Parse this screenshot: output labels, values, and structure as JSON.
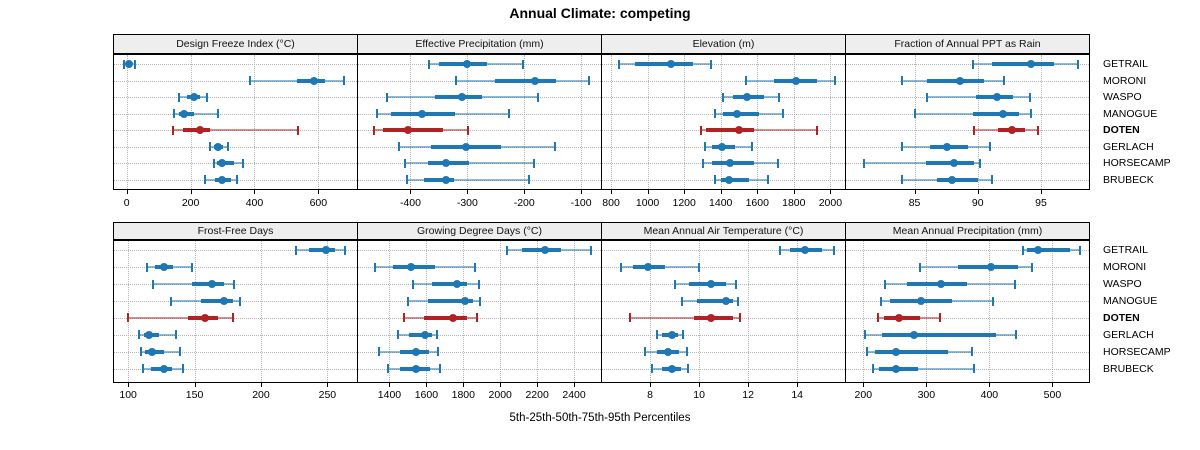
{
  "title": "Annual Climate: competing",
  "xlabel": "5th-25th-50th-75th-95th Percentiles",
  "sites": [
    "GETRAIL",
    "MORONI",
    "WASPO",
    "MANOGUE",
    "DOTEN",
    "GERLACH",
    "HORSECAMP",
    "BRUBECK"
  ],
  "highlight_site": "DOTEN",
  "percentile_labels": [
    "5th",
    "25th",
    "50th",
    "75th",
    "95th"
  ],
  "colors": {
    "series_blue": "#1f77b4",
    "highlight_red": "#b22222",
    "strip_bg": "#eeeeee",
    "grid": "#b5b5b5",
    "border": "#000000"
  },
  "chart_data": [
    {
      "type": "percentile-dotplot",
      "title": "Design Freeze Index (°C)",
      "row": 0,
      "col": 0,
      "xlim": [
        -43,
        721
      ],
      "ticks": [
        0,
        200,
        400,
        600
      ],
      "series": [
        {
          "name": "GETRAIL",
          "values": [
            -8,
            -2,
            6,
            15,
            25
          ]
        },
        {
          "name": "MORONI",
          "values": [
            385,
            533,
            585,
            620,
            680
          ]
        },
        {
          "name": "WASPO",
          "values": [
            165,
            190,
            212,
            230,
            252
          ]
        },
        {
          "name": "MANOGUE",
          "values": [
            147,
            163,
            180,
            210,
            285
          ]
        },
        {
          "name": "DOTEN",
          "values": [
            145,
            175,
            228,
            262,
            535
          ]
        },
        {
          "name": "GERLACH",
          "values": [
            260,
            272,
            285,
            302,
            317
          ]
        },
        {
          "name": "HORSECAMP",
          "values": [
            272,
            282,
            297,
            335,
            365
          ]
        },
        {
          "name": "BRUBECK",
          "values": [
            246,
            276,
            297,
            325,
            345
          ]
        }
      ]
    },
    {
      "type": "percentile-dotplot",
      "title": "Effective Precipitation (mm)",
      "row": 0,
      "col": 1,
      "xlim": [
        -494,
        -65
      ],
      "ticks": [
        -400,
        -300,
        -200,
        -100
      ],
      "series": [
        {
          "name": "GETRAIL",
          "values": [
            -367,
            -350,
            -300,
            -266,
            -203
          ]
        },
        {
          "name": "MORONI",
          "values": [
            -320,
            -252,
            -181,
            -144,
            -86
          ]
        },
        {
          "name": "WASPO",
          "values": [
            -441,
            -356,
            -309,
            -274,
            -175
          ]
        },
        {
          "name": "MANOGUE",
          "values": [
            -458,
            -435,
            -380,
            -321,
            -227
          ]
        },
        {
          "name": "DOTEN",
          "values": [
            -464,
            -449,
            -404,
            -342,
            -298
          ]
        },
        {
          "name": "GERLACH",
          "values": [
            -421,
            -364,
            -302,
            -240,
            -146
          ]
        },
        {
          "name": "HORSECAMP",
          "values": [
            -410,
            -369,
            -337,
            -297,
            -182
          ]
        },
        {
          "name": "BRUBECK",
          "values": [
            -406,
            -377,
            -338,
            -324,
            -191
          ]
        }
      ]
    },
    {
      "type": "percentile-dotplot",
      "title": "Elevation (m)",
      "row": 0,
      "col": 2,
      "xlim": [
        745,
        2080
      ],
      "ticks": [
        800,
        1000,
        1200,
        1400,
        1600,
        1800,
        2000
      ],
      "series": [
        {
          "name": "GETRAIL",
          "values": [
            845,
            930,
            1130,
            1250,
            1345
          ]
        },
        {
          "name": "MORONI",
          "values": [
            1540,
            1690,
            1810,
            1925,
            2025
          ]
        },
        {
          "name": "WASPO",
          "values": [
            1415,
            1465,
            1545,
            1635,
            1720
          ]
        },
        {
          "name": "MANOGUE",
          "values": [
            1370,
            1410,
            1490,
            1610,
            1740
          ]
        },
        {
          "name": "DOTEN",
          "values": [
            1290,
            1320,
            1500,
            1580,
            1925
          ]
        },
        {
          "name": "GERLACH",
          "values": [
            1315,
            1350,
            1405,
            1480,
            1570
          ]
        },
        {
          "name": "HORSECAMP",
          "values": [
            1305,
            1355,
            1450,
            1580,
            1715
          ]
        },
        {
          "name": "BRUBECK",
          "values": [
            1370,
            1400,
            1445,
            1555,
            1660
          ]
        }
      ]
    },
    {
      "type": "percentile-dotplot",
      "title": "Fraction of Annual PPT as Rain",
      "row": 0,
      "col": 3,
      "xlim": [
        79.5,
        98.8
      ],
      "ticks": [
        85,
        90,
        95
      ],
      "series": [
        {
          "name": "GETRAIL",
          "values": [
            89.6,
            91.1,
            94.2,
            96.0,
            97.9
          ]
        },
        {
          "name": "MORONI",
          "values": [
            84.0,
            86.0,
            88.6,
            90.5,
            92.1
          ]
        },
        {
          "name": "WASPO",
          "values": [
            86.0,
            89.9,
            91.5,
            92.8,
            94.1
          ]
        },
        {
          "name": "MANOGUE",
          "values": [
            85.0,
            89.6,
            92.0,
            93.3,
            94.2
          ]
        },
        {
          "name": "DOTEN",
          "values": [
            89.7,
            91.6,
            92.7,
            93.7,
            94.8
          ]
        },
        {
          "name": "GERLACH",
          "values": [
            84.0,
            86.2,
            87.6,
            89.2,
            91.0
          ]
        },
        {
          "name": "HORSECAMP",
          "values": [
            81.0,
            85.9,
            88.1,
            89.7,
            90.2
          ]
        },
        {
          "name": "BRUBECK",
          "values": [
            84.0,
            86.8,
            88.0,
            90.0,
            91.1
          ]
        }
      ]
    },
    {
      "type": "percentile-dotplot",
      "title": "Frost-Free Days",
      "row": 1,
      "col": 0,
      "xlim": [
        88.6,
        272.3
      ],
      "ticks": [
        100,
        150,
        200,
        250
      ],
      "series": [
        {
          "name": "GETRAIL",
          "values": [
            226,
            236,
            249,
            256,
            263
          ]
        },
        {
          "name": "MORONI",
          "values": [
            114,
            120,
            127,
            134,
            148
          ]
        },
        {
          "name": "WASPO",
          "values": [
            119,
            148,
            163,
            172,
            180
          ]
        },
        {
          "name": "MANOGUE",
          "values": [
            132,
            155,
            172,
            179,
            184
          ]
        },
        {
          "name": "DOTEN",
          "values": [
            100,
            145,
            158,
            168,
            179
          ]
        },
        {
          "name": "GERLACH",
          "values": [
            108,
            112,
            116,
            123,
            136
          ]
        },
        {
          "name": "HORSECAMP",
          "values": [
            110,
            113,
            118,
            127,
            139
          ]
        },
        {
          "name": "BRUBECK",
          "values": [
            111,
            117,
            127,
            133,
            141
          ]
        }
      ]
    },
    {
      "type": "percentile-dotplot",
      "title": "Growing Degree Days (°C)",
      "row": 1,
      "col": 1,
      "xlim": [
        1224,
        2546
      ],
      "ticks": [
        1400,
        1600,
        1800,
        2000,
        2200,
        2400
      ],
      "series": [
        {
          "name": "GETRAIL",
          "values": [
            2035,
            2120,
            2240,
            2330,
            2490
          ]
        },
        {
          "name": "MORONI",
          "values": [
            1320,
            1420,
            1515,
            1645,
            1865
          ]
        },
        {
          "name": "WASPO",
          "values": [
            1530,
            1630,
            1765,
            1820,
            1885
          ]
        },
        {
          "name": "MANOGUE",
          "values": [
            1500,
            1610,
            1810,
            1855,
            1890
          ]
        },
        {
          "name": "DOTEN",
          "values": [
            1480,
            1585,
            1745,
            1820,
            1875
          ]
        },
        {
          "name": "GERLACH",
          "values": [
            1445,
            1505,
            1590,
            1630,
            1660
          ]
        },
        {
          "name": "HORSECAMP",
          "values": [
            1345,
            1455,
            1545,
            1615,
            1665
          ]
        },
        {
          "name": "BRUBECK",
          "values": [
            1390,
            1455,
            1545,
            1620,
            1675
          ]
        }
      ]
    },
    {
      "type": "percentile-dotplot",
      "title": "Mean Annual Air Temperature (°C)",
      "row": 1,
      "col": 2,
      "xlim": [
        6.0,
        15.95
      ],
      "ticks": [
        8,
        10,
        12,
        14
      ],
      "series": [
        {
          "name": "GETRAIL",
          "values": [
            13.3,
            13.7,
            14.3,
            15.0,
            15.5
          ]
        },
        {
          "name": "MORONI",
          "values": [
            6.8,
            7.3,
            7.9,
            8.6,
            10.0
          ]
        },
        {
          "name": "WASPO",
          "values": [
            9.0,
            9.6,
            10.5,
            11.1,
            11.5
          ]
        },
        {
          "name": "MANOGUE",
          "values": [
            9.3,
            9.9,
            11.1,
            11.4,
            11.6
          ]
        },
        {
          "name": "DOTEN",
          "values": [
            7.2,
            9.8,
            10.5,
            11.4,
            11.65
          ]
        },
        {
          "name": "GERLACH",
          "values": [
            8.3,
            8.5,
            8.9,
            9.15,
            9.35
          ]
        },
        {
          "name": "HORSECAMP",
          "values": [
            7.8,
            8.3,
            8.75,
            9.2,
            9.5
          ]
        },
        {
          "name": "BRUBECK",
          "values": [
            8.1,
            8.5,
            8.9,
            9.25,
            9.55
          ]
        }
      ]
    },
    {
      "type": "percentile-dotplot",
      "title": "Mean Annual Precipitation (mm)",
      "row": 1,
      "col": 3,
      "xlim": [
        171,
        558
      ],
      "ticks": [
        200,
        300,
        400,
        500
      ],
      "series": [
        {
          "name": "GETRAIL",
          "values": [
            453,
            460,
            477,
            528,
            543
          ]
        },
        {
          "name": "MORONI",
          "values": [
            290,
            350,
            402,
            445,
            467
          ]
        },
        {
          "name": "WASPO",
          "values": [
            235,
            270,
            323,
            365,
            440
          ]
        },
        {
          "name": "MANOGUE",
          "values": [
            228,
            243,
            292,
            340,
            405
          ]
        },
        {
          "name": "DOTEN",
          "values": [
            224,
            233,
            257,
            290,
            322
          ]
        },
        {
          "name": "GERLACH",
          "values": [
            202,
            230,
            280,
            410,
            442
          ]
        },
        {
          "name": "HORSECAMP",
          "values": [
            206,
            218,
            252,
            335,
            372
          ]
        },
        {
          "name": "BRUBECK",
          "values": [
            215,
            225,
            252,
            287,
            375
          ]
        }
      ]
    }
  ]
}
